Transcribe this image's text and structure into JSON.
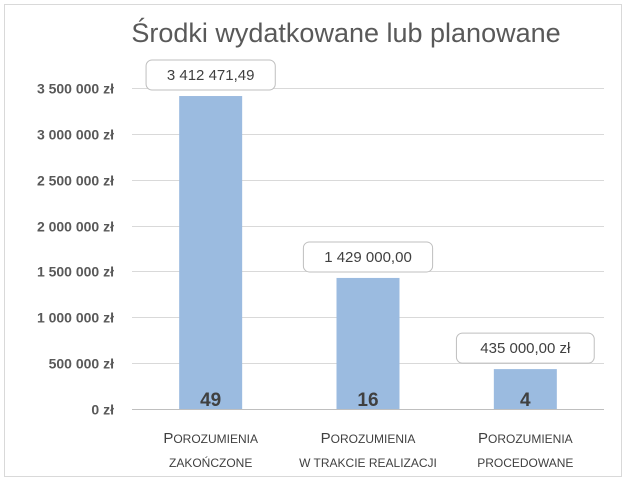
{
  "chart_data": {
    "type": "bar",
    "title": "Środki wydatkowane lub planowane",
    "categories": [
      {
        "first": "P",
        "rest": "OROZUMIENIA",
        "line2": "ZAKOŃCZONE"
      },
      {
        "first": "P",
        "rest": "OROZUMIENIA",
        "line2": "W TRAKCIE REALIZACJI"
      },
      {
        "first": "P",
        "rest": "OROZUMIENIA",
        "line2": "PROCEDOWANE"
      }
    ],
    "values": [
      3412471.49,
      1429000.0,
      435000.0
    ],
    "value_labels": [
      "3 412 471,49",
      "1 429 000,00",
      "435 000,00 zł"
    ],
    "counts": [
      "49",
      "16",
      "4"
    ],
    "ylim": [
      0,
      3500000
    ],
    "yticks": [
      0,
      500000,
      1000000,
      1500000,
      2000000,
      2500000,
      3000000,
      3500000
    ],
    "ytick_labels": [
      "0 zł",
      "500 000 zł",
      "1 000 000 zł",
      "1 500 000 zł",
      "2 000 000 zł",
      "2 500 000 zł",
      "3 000 000 zł",
      "3 500 000 zł"
    ],
    "grid": true,
    "legend": "none",
    "colors": {
      "bar": "#9bbbe0",
      "text": "#404040",
      "axis_text": "#595959",
      "grid": "#d9d9d9"
    }
  }
}
